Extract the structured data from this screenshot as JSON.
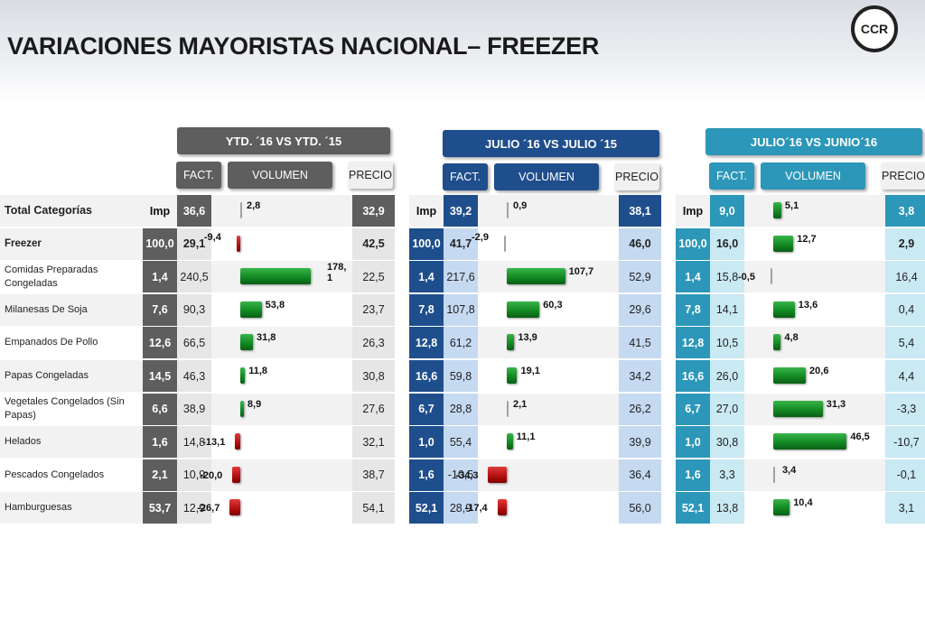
{
  "title": "VARIACIONES MAYORISTAS NACIONAL– FREEZER",
  "logo_text": "CCR",
  "colors": {
    "panel1_dark": "#5e5e5e",
    "panel1_light": "#e6e6e6",
    "panel2_dark": "#1f4e8c",
    "panel2_light": "#c5d9f1",
    "panel3_dark": "#2c97b8",
    "panel3_light": "#c9e9f3",
    "bar_positive": "#138a23",
    "bar_negative": "#b10e0e"
  },
  "chart_data": {
    "type": "table",
    "label_header": "Total Categorías",
    "row_labels": [
      "Freezer",
      "Comidas Preparadas Congeladas",
      "Milanesas De Soja",
      "Empanados De Pollo",
      "Papas Congeladas",
      "Vegetales Congelados (Sin Papas)",
      "Helados",
      "Pescados Congelados",
      "Hamburguesas"
    ],
    "column_labels": {
      "imp": "Imp",
      "fact": "FACT.",
      "volumen": "VOLUMEN",
      "precio": "PRECIO"
    },
    "panels": [
      {
        "title": "YTD. ´16 VS YTD. ´15",
        "total": {
          "imp": "Imp",
          "fact": "36,6",
          "volumen": 2.8,
          "volumen_label": "2,8",
          "precio": "32,9"
        },
        "rows": [
          {
            "imp": "100,0",
            "fact": "29,1",
            "volumen": -9.4,
            "volumen_label": "-9,4",
            "precio": "42,5"
          },
          {
            "imp": "1,4",
            "fact": "240,5",
            "volumen": 178.1,
            "volumen_label": "178,\n1",
            "precio": "22,5"
          },
          {
            "imp": "7,6",
            "fact": "90,3",
            "volumen": 53.8,
            "volumen_label": "53,8",
            "precio": "23,7"
          },
          {
            "imp": "12,6",
            "fact": "66,5",
            "volumen": 31.8,
            "volumen_label": "31,8",
            "precio": "26,3"
          },
          {
            "imp": "14,5",
            "fact": "46,3",
            "volumen": 11.8,
            "volumen_label": "11,8",
            "precio": "30,8"
          },
          {
            "imp": "6,6",
            "fact": "38,9",
            "volumen": 8.9,
            "volumen_label": "8,9",
            "precio": "27,6"
          },
          {
            "imp": "1,6",
            "fact": "14,8",
            "volumen": -13.1,
            "volumen_label": "-13,1",
            "precio": "32,1"
          },
          {
            "imp": "2,1",
            "fact": "10,9",
            "volumen": -20.0,
            "volumen_label": "-20,0",
            "precio": "38,7"
          },
          {
            "imp": "53,7",
            "fact": "12,9",
            "volumen": -26.7,
            "volumen_label": "-26,7",
            "precio": "54,1"
          }
        ]
      },
      {
        "title": "JULIO ´16 VS  JULIO ´15",
        "total": {
          "imp": "Imp",
          "fact": "39,2",
          "volumen": 0.9,
          "volumen_label": "0,9",
          "precio": "38,1"
        },
        "rows": [
          {
            "imp": "100,0",
            "fact": "41,7",
            "volumen": -2.9,
            "volumen_label": "-2,9",
            "precio": "46,0"
          },
          {
            "imp": "1,4",
            "fact": "217,6",
            "volumen": 107.7,
            "volumen_label": "107,7",
            "precio": "52,9"
          },
          {
            "imp": "7,8",
            "fact": "107,8",
            "volumen": 60.3,
            "volumen_label": "60,3",
            "precio": "29,6"
          },
          {
            "imp": "12,8",
            "fact": "61,2",
            "volumen": 13.9,
            "volumen_label": "13,9",
            "precio": "41,5"
          },
          {
            "imp": "16,6",
            "fact": "59,8",
            "volumen": 19.1,
            "volumen_label": "19,1",
            "precio": "34,2"
          },
          {
            "imp": "6,7",
            "fact": "28,8",
            "volumen": 2.1,
            "volumen_label": "2,1",
            "precio": "26,2"
          },
          {
            "imp": "1,0",
            "fact": "55,4",
            "volumen": 11.1,
            "volumen_label": "11,1",
            "precio": "39,9"
          },
          {
            "imp": "1,6",
            "fact": "-10,5",
            "volumen": -34.3,
            "volumen_label": "-34,3",
            "precio": "36,4"
          },
          {
            "imp": "52,1",
            "fact": "28,9",
            "volumen": -17.4,
            "volumen_label": "-17,4",
            "precio": "56,0"
          }
        ]
      },
      {
        "title": "JULIO´16 VS JUNIO´16",
        "total": {
          "imp": "Imp",
          "fact": "9,0",
          "volumen": 5.1,
          "volumen_label": "5,1",
          "precio": "3,8"
        },
        "rows": [
          {
            "imp": "100,0",
            "fact": "16,0",
            "volumen": 12.7,
            "volumen_label": "12,7",
            "precio": "2,9"
          },
          {
            "imp": "1,4",
            "fact": "15,8",
            "volumen": -0.5,
            "volumen_label": "-0,5",
            "precio": "16,4"
          },
          {
            "imp": "7,8",
            "fact": "14,1",
            "volumen": 13.6,
            "volumen_label": "13,6",
            "precio": "0,4"
          },
          {
            "imp": "12,8",
            "fact": "10,5",
            "volumen": 4.8,
            "volumen_label": "4,8",
            "precio": "5,4"
          },
          {
            "imp": "16,6",
            "fact": "26,0",
            "volumen": 20.6,
            "volumen_label": "20,6",
            "precio": "4,4"
          },
          {
            "imp": "6,7",
            "fact": "27,0",
            "volumen": 31.3,
            "volumen_label": "31,3",
            "precio": "-3,3"
          },
          {
            "imp": "1,0",
            "fact": "30,8",
            "volumen": 46.5,
            "volumen_label": "46,5",
            "precio": "-10,7"
          },
          {
            "imp": "1,6",
            "fact": "3,3",
            "volumen": 3.4,
            "volumen_label": "3,4",
            "precio": "-0,1"
          },
          {
            "imp": "52,1",
            "fact": "13,8",
            "volumen": 10.4,
            "volumen_label": "10,4",
            "precio": "3,1"
          }
        ]
      }
    ]
  }
}
